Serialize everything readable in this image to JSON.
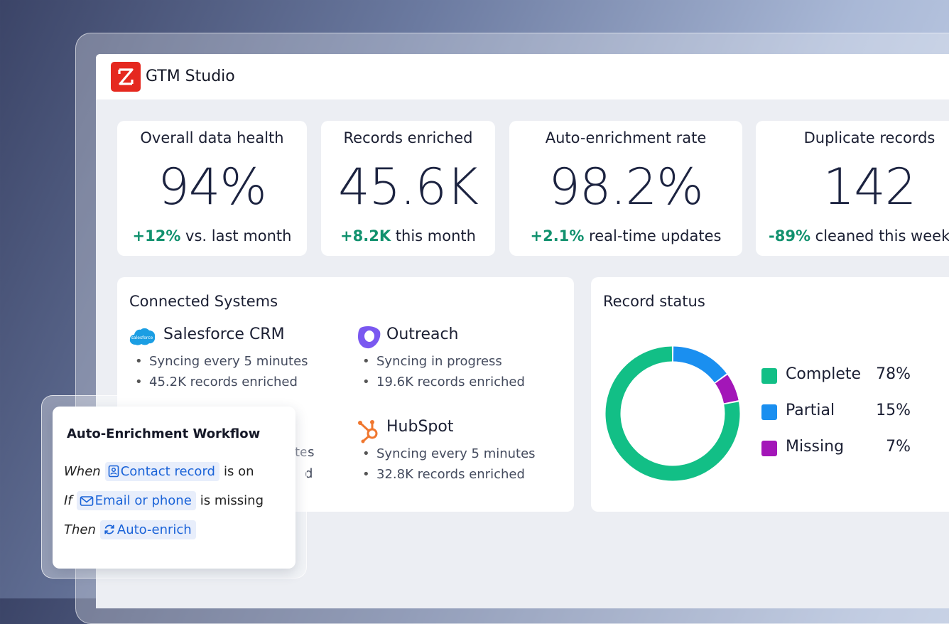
{
  "app": {
    "title": "GTM Studio",
    "logo_icon": "zoominfo-logo-icon",
    "brand_color": "#e5281f"
  },
  "stats": [
    {
      "title": "Overall data health",
      "value": "94%",
      "delta": "+12%",
      "delta_text": " vs. last month"
    },
    {
      "title": "Records enriched",
      "value": "45.6K",
      "delta": "+8.2K",
      "delta_text": " this month"
    },
    {
      "title": "Auto-enrichment rate",
      "value": "98.2%",
      "delta": "+2.1%",
      "delta_text": " real-time updates"
    },
    {
      "title": "Duplicate records",
      "value": "142",
      "delta": "-89%",
      "delta_text": " cleaned this week"
    }
  ],
  "connected": {
    "title": "Connected Systems",
    "systems": [
      {
        "name": "Salesforce CRM",
        "icon": "salesforce-icon",
        "lines": [
          "Syncing every 5 minutes",
          "45.2K records enriched"
        ]
      },
      {
        "name": "Outreach",
        "icon": "outreach-icon",
        "lines": [
          "Syncing in progress",
          "19.6K records enriched"
        ]
      },
      {
        "name": "HubSpot",
        "icon": "hubspot-icon",
        "lines": [
          "Syncing every 5 minutes",
          "32.8K records enriched"
        ]
      }
    ],
    "hidden_fragments": [
      "tes",
      "d"
    ]
  },
  "record_status": {
    "title": "Record status",
    "legend": [
      {
        "label": "Complete",
        "pct": "78%",
        "color": "#12bf86"
      },
      {
        "label": "Partial",
        "pct": "15%",
        "color": "#1a8ff0"
      },
      {
        "label": "Missing",
        "pct": "7%",
        "color": "#a316b8"
      }
    ]
  },
  "chart_data": {
    "type": "pie",
    "categories": [
      "Complete",
      "Partial",
      "Missing"
    ],
    "values": [
      78,
      15,
      7
    ],
    "title": "Record status",
    "donut": true,
    "legend": "right"
  },
  "workflow": {
    "title": "Auto-Enrichment Workflow",
    "rows": [
      {
        "keyword": "When",
        "chip": "Contact record",
        "chip_icon": "contact-card-icon",
        "suffix": "is on"
      },
      {
        "keyword": "If",
        "chip": "Email or phone",
        "chip_icon": "mail-icon",
        "suffix": "is missing"
      },
      {
        "keyword": "Then",
        "chip": "Auto-enrich",
        "chip_icon": "refresh-icon",
        "suffix": ""
      }
    ]
  }
}
